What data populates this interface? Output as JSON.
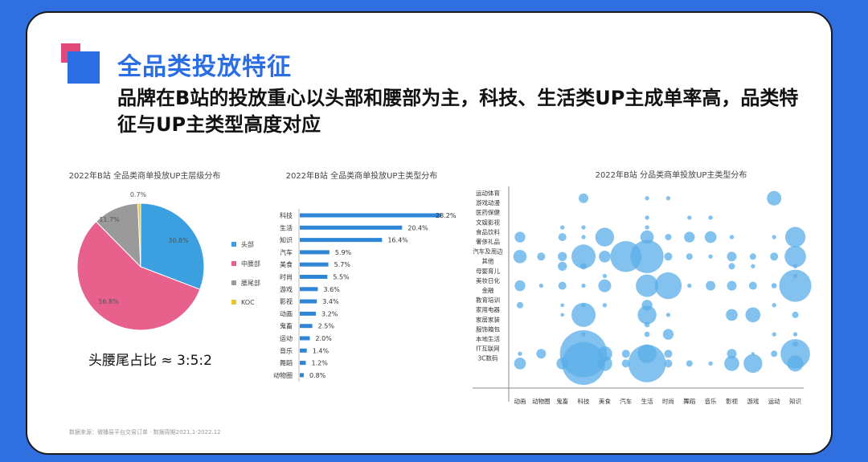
{
  "header": {
    "title": "全品类投放特征",
    "subtitle": "品牌在B站的投放重心以头部和腰部为主，科技、生活类UP主成单率高，品类特征与UP主类型高度对应"
  },
  "ratio_note": "头腰尾占比 ≈ 3:5:2",
  "footer": "数据来源：微播易平台交易订单 · 数据周期2021.1-2022.12",
  "colors": {
    "accent": "#2b6de3",
    "pink": "#e0497a",
    "bar": "#2f86d6",
    "bubble": "#5aaee8"
  },
  "chart_data": [
    {
      "type": "pie",
      "title": "2022年B站 全品类商单投放UP主层级分布",
      "slices": [
        {
          "label": "头部",
          "value": 30.8,
          "display": "30.8%",
          "color": "#3b9fe0"
        },
        {
          "label": "中腰部",
          "value": 56.8,
          "display": "56.8%",
          "color": "#e8608c"
        },
        {
          "label": "腰尾部",
          "value": 11.7,
          "display": "11.7%",
          "color": "#9a9a9a"
        },
        {
          "label": "KOC",
          "value": 0.7,
          "display": "0.7%",
          "color": "#e8c72a"
        }
      ],
      "legend": "right"
    },
    {
      "type": "bar",
      "title": "2022年B站 全品类商单投放UP主类型分布",
      "orientation": "horizontal",
      "categories": [
        "科技",
        "生活",
        "知识",
        "汽车",
        "美食",
        "时尚",
        "游戏",
        "影视",
        "动画",
        "鬼畜",
        "运动",
        "音乐",
        "舞蹈",
        "动物圈"
      ],
      "values": [
        28.2,
        20.4,
        16.4,
        5.9,
        5.7,
        5.5,
        3.6,
        3.4,
        3.2,
        2.5,
        2.0,
        1.4,
        1.2,
        0.8
      ],
      "labels": [
        "28.2%",
        "20.4%",
        "16.4%",
        "5.9%",
        "5.7%",
        "5.5%",
        "3.6%",
        "3.4%",
        "3.2%",
        "2.5%",
        "2.0%",
        "1.4%",
        "1.2%",
        "0.8%"
      ],
      "xlim": [
        0,
        30
      ]
    },
    {
      "type": "scatter",
      "title": "2022年B站 分品类商单投放UP主类型分布",
      "subtype": "bubble",
      "x_categories": [
        "动画",
        "动物圈",
        "鬼畜",
        "科技",
        "美食",
        "汽车",
        "生活",
        "时尚",
        "舞蹈",
        "音乐",
        "影视",
        "游戏",
        "运动",
        "知识"
      ],
      "y_categories": [
        "运动体育",
        "游戏动漫",
        "医药保健",
        "文娱影视",
        "食品饮料",
        "奢侈礼品",
        "汽车及周边",
        "其他",
        "母婴育儿",
        "美妆日化",
        "金融",
        "教育培训",
        "家用电器",
        "家居家装",
        "服饰箱包",
        "本地生活",
        "IT互联网",
        "3C数码"
      ],
      "points": [
        [
          0,
          4,
          20
        ],
        [
          0,
          6,
          25
        ],
        [
          0,
          9,
          20
        ],
        [
          0,
          11,
          12
        ],
        [
          0,
          16,
          8
        ],
        [
          0,
          17,
          22
        ],
        [
          1,
          6,
          15
        ],
        [
          1,
          9,
          8
        ],
        [
          1,
          16,
          18
        ],
        [
          2,
          3,
          8
        ],
        [
          2,
          4,
          15
        ],
        [
          2,
          6,
          17
        ],
        [
          2,
          7,
          17
        ],
        [
          2,
          9,
          15
        ],
        [
          2,
          11,
          7
        ],
        [
          2,
          12,
          7
        ],
        [
          2,
          17,
          22
        ],
        [
          3,
          0,
          18
        ],
        [
          3,
          3,
          8
        ],
        [
          3,
          4,
          8
        ],
        [
          3,
          6,
          45
        ],
        [
          3,
          7,
          12
        ],
        [
          3,
          9,
          8
        ],
        [
          3,
          11,
          8
        ],
        [
          3,
          12,
          45
        ],
        [
          3,
          14,
          8
        ],
        [
          3,
          16,
          88
        ],
        [
          3,
          17,
          80
        ],
        [
          4,
          4,
          35
        ],
        [
          4,
          6,
          22
        ],
        [
          4,
          8,
          8
        ],
        [
          4,
          9,
          24
        ],
        [
          4,
          11,
          8
        ],
        [
          4,
          16,
          28
        ],
        [
          4,
          17,
          28
        ],
        [
          5,
          6,
          58
        ],
        [
          5,
          16,
          15
        ],
        [
          5,
          17,
          15
        ],
        [
          6,
          0,
          8
        ],
        [
          6,
          2,
          8
        ],
        [
          6,
          3,
          8
        ],
        [
          6,
          4,
          25
        ],
        [
          6,
          6,
          62
        ],
        [
          6,
          9,
          42
        ],
        [
          6,
          11,
          20
        ],
        [
          6,
          12,
          35
        ],
        [
          6,
          13,
          10
        ],
        [
          6,
          14,
          10
        ],
        [
          6,
          16,
          35
        ],
        [
          6,
          17,
          70
        ],
        [
          7,
          0,
          8
        ],
        [
          7,
          4,
          12
        ],
        [
          7,
          6,
          15
        ],
        [
          7,
          9,
          50
        ],
        [
          7,
          12,
          8
        ],
        [
          7,
          14,
          20
        ],
        [
          7,
          16,
          15
        ],
        [
          7,
          17,
          15
        ],
        [
          8,
          2,
          8
        ],
        [
          8,
          4,
          20
        ],
        [
          8,
          6,
          12
        ],
        [
          8,
          9,
          8
        ],
        [
          8,
          17,
          12
        ],
        [
          9,
          2,
          8
        ],
        [
          9,
          4,
          22
        ],
        [
          9,
          6,
          8
        ],
        [
          9,
          9,
          18
        ],
        [
          9,
          17,
          8
        ],
        [
          10,
          4,
          8
        ],
        [
          10,
          6,
          18
        ],
        [
          10,
          7,
          12
        ],
        [
          10,
          9,
          18
        ],
        [
          10,
          12,
          22
        ],
        [
          10,
          16,
          18
        ],
        [
          10,
          17,
          28
        ],
        [
          11,
          6,
          12
        ],
        [
          11,
          7,
          8
        ],
        [
          11,
          9,
          15
        ],
        [
          11,
          12,
          28
        ],
        [
          11,
          16,
          6
        ],
        [
          11,
          17,
          35
        ],
        [
          12,
          0,
          27
        ],
        [
          12,
          4,
          8
        ],
        [
          12,
          6,
          15
        ],
        [
          12,
          9,
          10
        ],
        [
          12,
          11,
          8
        ],
        [
          12,
          14,
          8
        ],
        [
          12,
          16,
          12
        ],
        [
          13,
          4,
          38
        ],
        [
          13,
          6,
          40
        ],
        [
          13,
          7,
          8
        ],
        [
          13,
          8,
          8
        ],
        [
          13,
          9,
          60
        ],
        [
          13,
          12,
          12
        ],
        [
          13,
          14,
          8
        ],
        [
          13,
          15,
          10
        ],
        [
          13,
          16,
          55
        ],
        [
          13,
          17,
          30
        ]
      ]
    }
  ]
}
